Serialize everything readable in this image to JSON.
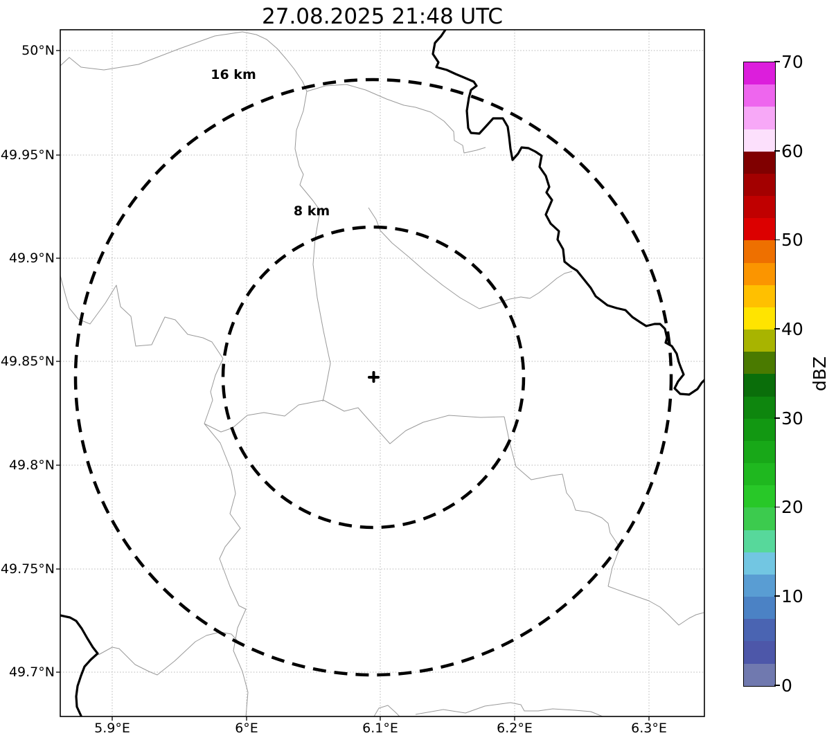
{
  "title": "27.08.2025 21:48 UTC",
  "map": {
    "ring_labels": {
      "outer": "16 km",
      "inner": "8 km"
    },
    "center_marker": "+"
  },
  "axes": {
    "x": [
      "5.9°E",
      "6°E",
      "6.1°E",
      "6.2°E",
      "6.3°E"
    ],
    "y": [
      "50°N",
      "49.95°N",
      "49.9°N",
      "49.85°N",
      "49.8°N",
      "49.75°N",
      "49.7°N"
    ]
  },
  "colorbar": {
    "label": "dBZ",
    "ticks": [
      "70",
      "60",
      "50",
      "40",
      "30",
      "20",
      "10",
      "0"
    ],
    "tick_values": [
      70,
      60,
      50,
      40,
      30,
      20,
      10,
      0
    ],
    "min": 0,
    "max": 70,
    "colors_bottom_to_top": [
      "#7079AF",
      "#4D57A9",
      "#4A64B2",
      "#4B82C5",
      "#599DD3",
      "#72C6E2",
      "#57D89B",
      "#3CCB4E",
      "#28C828",
      "#1FB81F",
      "#18A818",
      "#129812",
      "#0E860E",
      "#0A6E0A",
      "#4A7A00",
      "#A8B400",
      "#FFE400",
      "#FFC000",
      "#FB9500",
      "#EE7000",
      "#DC0000",
      "#C00000",
      "#A30000",
      "#800000",
      "#FCE0FC",
      "#F7A8F7",
      "#EE66EE",
      "#DC1EDC"
    ]
  },
  "chart_data": {
    "type": "map",
    "title": "27.08.2025 21:48 UTC",
    "description": "Weather radar reflectivity map (PPI) with dashed range rings around the radar site; no precipitation echoes visible in the scene",
    "x_axis": {
      "tick_labels": [
        "5.9°E",
        "6°E",
        "6.1°E",
        "6.2°E",
        "6.3°E"
      ],
      "approx_range_deg_east": [
        5.86,
        6.34
      ]
    },
    "y_axis": {
      "tick_labels": [
        "50°N",
        "49.95°N",
        "49.9°N",
        "49.85°N",
        "49.8°N",
        "49.75°N",
        "49.7°N"
      ],
      "approx_range_deg_north": [
        49.68,
        50.01
      ]
    },
    "range_rings": [
      {
        "label": "8 km"
      },
      {
        "label": "16 km"
      }
    ],
    "colorbar": {
      "label": "dBZ",
      "ticks": [
        0,
        10,
        20,
        30,
        40,
        50,
        60,
        70
      ],
      "range": [
        0,
        70
      ],
      "segment_step_dbz": 2.5
    },
    "reflectivity_echoes": "none visible",
    "grid": "dotted lat/lon graticule",
    "map_layers": [
      "thin gray administrative boundaries",
      "thick black border/river line"
    ]
  }
}
